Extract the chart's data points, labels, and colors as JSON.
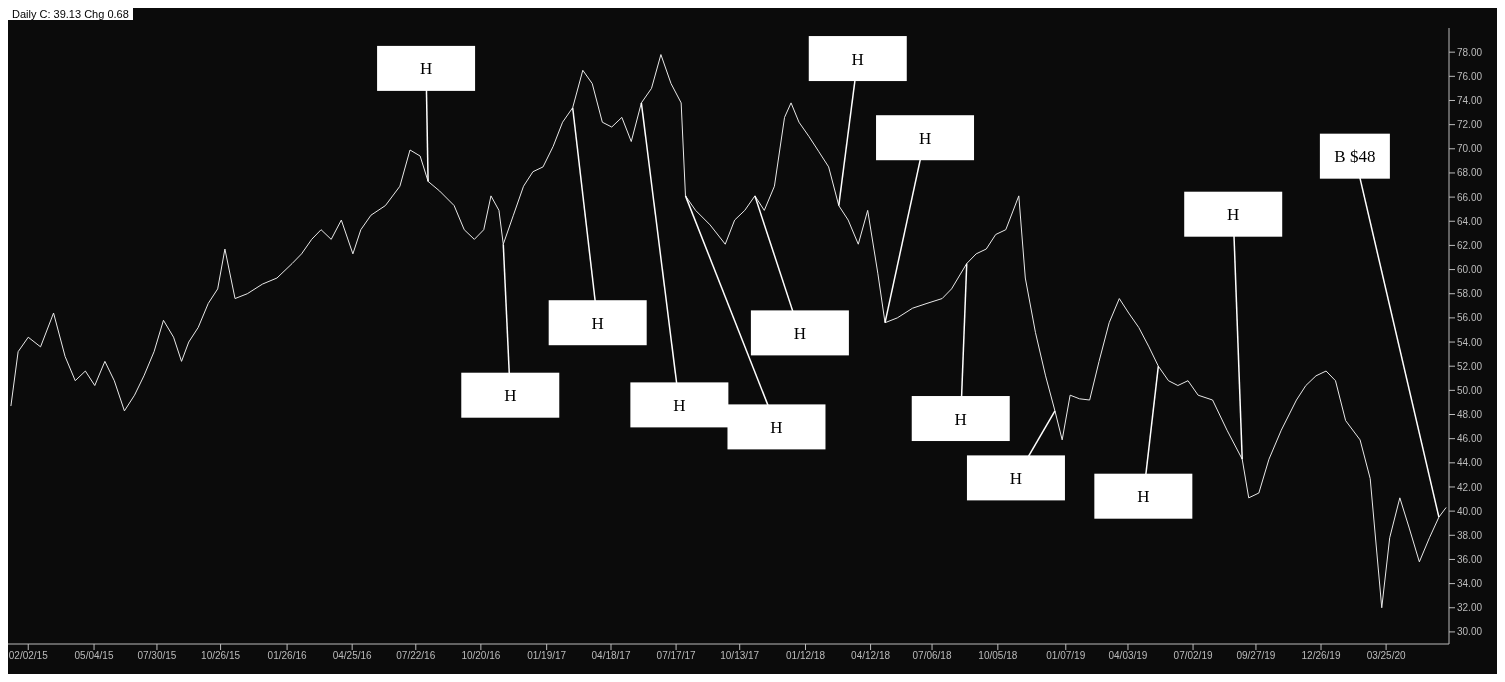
{
  "chart_data": {
    "type": "line",
    "title": "Daily C: 39.13 Chg 0.68",
    "color": "#e8e8e8",
    "x": [
      "2015-01-09",
      "2015-01-19",
      "2015-02-02",
      "2015-02-19",
      "2015-03-09",
      "2015-03-25",
      "2015-04-08",
      "2015-04-22",
      "2015-05-05",
      "2015-05-19",
      "2015-06-01",
      "2015-06-15",
      "2015-06-29",
      "2015-07-12",
      "2015-07-26",
      "2015-08-08",
      "2015-08-22",
      "2015-09-02",
      "2015-09-12",
      "2015-09-25",
      "2015-10-09",
      "2015-10-22",
      "2015-11-01",
      "2015-11-15",
      "2015-12-02",
      "2015-12-23",
      "2016-01-12",
      "2016-02-02",
      "2016-02-15",
      "2016-02-29",
      "2016-03-13",
      "2016-03-27",
      "2016-04-10",
      "2016-04-26",
      "2016-05-07",
      "2016-05-21",
      "2016-06-10",
      "2016-06-30",
      "2016-07-14",
      "2016-07-28",
      "2016-08-08",
      "2016-08-24",
      "2016-09-13",
      "2016-09-27",
      "2016-10-11",
      "2016-10-24",
      "2016-11-03",
      "2016-11-14",
      "2016-11-20",
      "2016-12-04",
      "2016-12-18",
      "2016-12-31",
      "2017-01-14",
      "2017-01-28",
      "2017-02-10",
      "2017-02-24",
      "2017-03-10",
      "2017-03-23",
      "2017-04-06",
      "2017-04-19",
      "2017-05-03",
      "2017-05-16",
      "2017-05-30",
      "2017-06-13",
      "2017-06-26",
      "2017-07-10",
      "2017-07-24",
      "2017-07-30",
      "2017-08-13",
      "2017-09-02",
      "2017-09-23",
      "2017-10-06",
      "2017-10-20",
      "2017-11-03",
      "2017-11-16",
      "2017-11-30",
      "2017-12-14",
      "2017-12-23",
      "2018-01-03",
      "2018-01-17",
      "2018-01-30",
      "2018-02-13",
      "2018-02-27",
      "2018-03-12",
      "2018-03-26",
      "2018-04-08",
      "2018-04-22",
      "2018-05-02",
      "2018-05-19",
      "2018-06-09",
      "2018-06-29",
      "2018-07-20",
      "2018-08-02",
      "2018-08-23",
      "2018-09-05",
      "2018-09-19",
      "2018-10-02",
      "2018-10-16",
      "2018-11-03",
      "2018-11-12",
      "2018-11-26",
      "2018-12-10",
      "2018-12-23",
      "2019-01-02",
      "2019-01-13",
      "2019-01-26",
      "2019-02-09",
      "2019-02-22",
      "2019-03-08",
      "2019-03-22",
      "2019-04-04",
      "2019-04-18",
      "2019-05-02",
      "2019-05-15",
      "2019-05-29",
      "2019-06-11",
      "2019-06-25",
      "2019-07-09",
      "2019-07-29",
      "2019-08-18",
      "2019-09-08",
      "2019-09-17",
      "2019-10-01",
      "2019-10-15",
      "2019-11-01",
      "2019-11-22",
      "2019-12-05",
      "2019-12-19",
      "2020-01-02",
      "2020-01-15",
      "2020-01-29",
      "2020-02-18",
      "2020-03-03",
      "2020-03-19",
      "2020-03-30",
      "2020-04-13",
      "2020-04-26",
      "2020-05-10",
      "2020-05-24",
      "2020-06-06",
      "2020-06-16"
    ],
    "values": [
      48.7,
      53.2,
      54.4,
      53.6,
      56.4,
      52.8,
      50.8,
      51.6,
      50.4,
      52.4,
      50.8,
      48.3,
      49.6,
      51.2,
      53.2,
      55.8,
      54.4,
      52.4,
      54.0,
      55.2,
      57.2,
      58.4,
      61.7,
      57.6,
      58.0,
      58.8,
      59.3,
      60.5,
      61.3,
      62.5,
      63.3,
      62.5,
      64.1,
      61.3,
      63.3,
      64.5,
      65.3,
      66.9,
      69.9,
      69.4,
      67.3,
      66.5,
      65.3,
      63.3,
      62.5,
      63.3,
      66.1,
      64.9,
      62.1,
      64.5,
      66.9,
      68.1,
      68.5,
      70.2,
      72.2,
      73.4,
      76.5,
      75.4,
      72.2,
      71.8,
      72.6,
      70.6,
      73.8,
      75.0,
      77.8,
      75.4,
      73.8,
      66.1,
      64.9,
      63.7,
      62.1,
      64.1,
      64.9,
      66.1,
      64.9,
      66.9,
      72.6,
      73.8,
      72.2,
      71.0,
      69.8,
      68.5,
      65.3,
      64.1,
      62.1,
      64.9,
      59.7,
      55.6,
      56.0,
      56.8,
      57.2,
      57.6,
      58.4,
      60.5,
      61.3,
      61.7,
      62.9,
      63.3,
      66.1,
      59.3,
      54.8,
      51.2,
      48.3,
      45.9,
      49.6,
      49.3,
      49.2,
      52.4,
      55.6,
      57.6,
      56.4,
      55.2,
      53.6,
      52.0,
      50.8,
      50.4,
      50.8,
      49.6,
      49.2,
      46.7,
      44.3,
      41.1,
      41.5,
      44.3,
      46.7,
      49.2,
      50.4,
      51.2,
      51.6,
      50.8,
      47.5,
      45.9,
      42.7,
      32.0,
      37.8,
      41.1,
      38.6,
      35.8,
      37.8,
      39.5,
      40.3
    ],
    "xlim": [
      "2015-01-05",
      "2020-06-20"
    ],
    "ylim": [
      29,
      80
    ],
    "xticks": [
      {
        "value": "2015-02-02",
        "label": "02/02/15"
      },
      {
        "value": "2015-05-04",
        "label": "05/04/15"
      },
      {
        "value": "2015-07-30",
        "label": "07/30/15"
      },
      {
        "value": "2015-10-26",
        "label": "10/26/15"
      },
      {
        "value": "2016-01-26",
        "label": "01/26/16"
      },
      {
        "value": "2016-04-25",
        "label": "04/25/16"
      },
      {
        "value": "2016-07-22",
        "label": "07/22/16"
      },
      {
        "value": "2016-10-20",
        "label": "10/20/16"
      },
      {
        "value": "2017-01-19",
        "label": "01/19/17"
      },
      {
        "value": "2017-04-18",
        "label": "04/18/17"
      },
      {
        "value": "2017-07-17",
        "label": "07/17/17"
      },
      {
        "value": "2017-10-13",
        "label": "10/13/17"
      },
      {
        "value": "2018-01-12",
        "label": "01/12/18"
      },
      {
        "value": "2018-04-12",
        "label": "04/12/18"
      },
      {
        "value": "2018-07-06",
        "label": "07/06/18"
      },
      {
        "value": "2018-10-05",
        "label": "10/05/18"
      },
      {
        "value": "2019-01-07",
        "label": "01/07/19"
      },
      {
        "value": "2019-04-03",
        "label": "04/03/19"
      },
      {
        "value": "2019-07-02",
        "label": "07/02/19"
      },
      {
        "value": "2019-09-27",
        "label": "09/27/19"
      },
      {
        "value": "2019-12-26",
        "label": "12/26/19"
      },
      {
        "value": "2020-03-25",
        "label": "03/25/20"
      }
    ],
    "yticks": [
      {
        "value": 30,
        "label": "30.00"
      },
      {
        "value": 32,
        "label": "32.00"
      },
      {
        "value": 34,
        "label": "34.00"
      },
      {
        "value": 36,
        "label": "36.00"
      },
      {
        "value": 38,
        "label": "38.00"
      },
      {
        "value": 40,
        "label": "40.00"
      },
      {
        "value": 42,
        "label": "42.00"
      },
      {
        "value": 44,
        "label": "44.00"
      },
      {
        "value": 46,
        "label": "46.00"
      },
      {
        "value": 48,
        "label": "48.00"
      },
      {
        "value": 50,
        "label": "50.00"
      },
      {
        "value": 52,
        "label": "52.00"
      },
      {
        "value": 54,
        "label": "54.00"
      },
      {
        "value": 56,
        "label": "56.00"
      },
      {
        "value": 58,
        "label": "58.00"
      },
      {
        "value": 60,
        "label": "60.00"
      },
      {
        "value": 62,
        "label": "62.00"
      },
      {
        "value": 64,
        "label": "64.00"
      },
      {
        "value": 66,
        "label": "66.00"
      },
      {
        "value": 68,
        "label": "68.00"
      },
      {
        "value": 70,
        "label": "70.00"
      },
      {
        "value": 72,
        "label": "72.00"
      },
      {
        "value": 74,
        "label": "74.00"
      },
      {
        "value": 76,
        "label": "76.00"
      },
      {
        "value": 78,
        "label": "78.00"
      }
    ],
    "annotations": [
      {
        "text": "H",
        "x": "2016-08-08",
        "y": 67.3
      },
      {
        "text": "H",
        "x": "2016-11-20",
        "y": 62.1
      },
      {
        "text": "H",
        "x": "2017-02-24",
        "y": 73.4
      },
      {
        "text": "H",
        "x": "2017-05-30",
        "y": 73.8
      },
      {
        "text": "H",
        "x": "2017-07-30",
        "y": 66.1
      },
      {
        "text": "H",
        "x": "2018-02-27",
        "y": 65.3
      },
      {
        "text": "H",
        "x": "2017-11-03",
        "y": 66.1
      },
      {
        "text": "H",
        "x": "2018-05-02",
        "y": 55.6
      },
      {
        "text": "H",
        "x": "2018-08-23",
        "y": 60.5
      },
      {
        "text": "H",
        "x": "2018-12-23",
        "y": 48.3
      },
      {
        "text": "H",
        "x": "2019-05-15",
        "y": 52.0
      },
      {
        "text": "H",
        "x": "2019-09-08",
        "y": 44.3
      },
      {
        "text": "B $48",
        "x": "2020-06-06",
        "y": 39.5
      }
    ]
  }
}
